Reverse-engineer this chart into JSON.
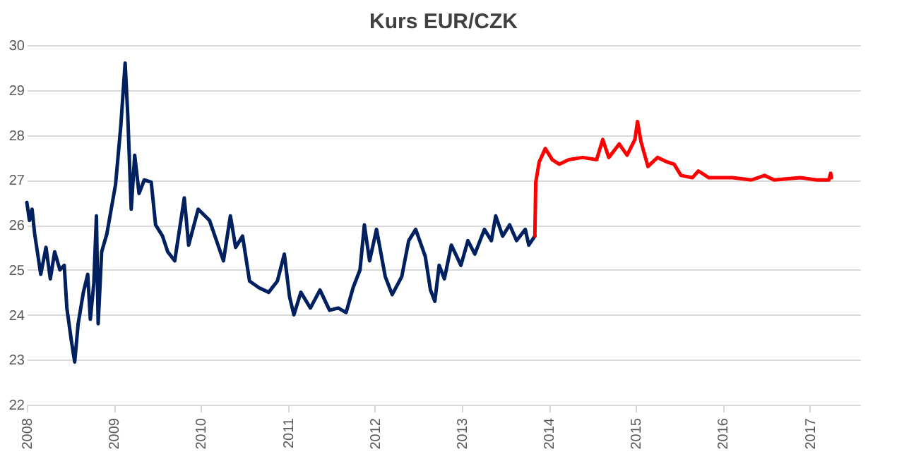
{
  "chart_data": {
    "type": "line",
    "title": "Kurs EUR/CZK",
    "xlim": [
      2008,
      2017.58
    ],
    "xticks": [
      2008,
      2009,
      2010,
      2011,
      2012,
      2013,
      2014,
      2015,
      2016,
      2017
    ],
    "ylim": [
      22,
      30
    ],
    "yticks": [
      22,
      23,
      24,
      25,
      26,
      27,
      28,
      29,
      30
    ],
    "grid": "y",
    "marker": "none",
    "line_style": "solid",
    "series": [
      {
        "color": "#002060",
        "x": [
          2008.0,
          2008.03,
          2008.06,
          2008.09,
          2008.16,
          2008.22,
          2008.27,
          2008.32,
          2008.38,
          2008.43,
          2008.46,
          2008.51,
          2008.55,
          2008.59,
          2008.65,
          2008.7,
          2008.73,
          2008.77,
          2008.8,
          2008.82,
          2008.86,
          2008.92,
          2008.97,
          2009.02,
          2009.08,
          2009.13,
          2009.16,
          2009.2,
          2009.24,
          2009.29,
          2009.35,
          2009.43,
          2009.48,
          2009.56,
          2009.62,
          2009.7,
          2009.81,
          2009.86,
          2009.97,
          2010.1,
          2010.18,
          2010.26,
          2010.34,
          2010.4,
          2010.48,
          2010.56,
          2010.67,
          2010.78,
          2010.88,
          2010.96,
          2011.02,
          2011.07,
          2011.15,
          2011.26,
          2011.37,
          2011.48,
          2011.58,
          2011.67,
          2011.75,
          2011.83,
          2011.88,
          2011.94,
          2012.02,
          2012.12,
          2012.2,
          2012.31,
          2012.39,
          2012.47,
          2012.58,
          2012.64,
          2012.69,
          2012.74,
          2012.8,
          2012.88,
          2012.99,
          2013.07,
          2013.15,
          2013.26,
          2013.34,
          2013.39,
          2013.47,
          2013.55,
          2013.63,
          2013.73,
          2013.77,
          2013.84
        ],
        "values": [
          26.5,
          26.1,
          26.35,
          25.8,
          24.9,
          25.5,
          24.8,
          25.4,
          25.0,
          25.1,
          24.15,
          23.45,
          22.95,
          23.8,
          24.5,
          24.9,
          23.9,
          24.7,
          26.2,
          23.8,
          25.4,
          25.8,
          26.35,
          26.9,
          28.2,
          29.6,
          28.45,
          26.35,
          27.55,
          26.7,
          27.0,
          26.95,
          26.0,
          25.75,
          25.4,
          25.2,
          26.6,
          25.55,
          26.35,
          26.1,
          25.65,
          25.2,
          26.2,
          25.5,
          25.75,
          24.75,
          24.6,
          24.5,
          24.75,
          25.35,
          24.4,
          24.0,
          24.5,
          24.15,
          24.55,
          24.1,
          24.15,
          24.05,
          24.6,
          25.0,
          26.0,
          25.2,
          25.9,
          24.85,
          24.45,
          24.85,
          25.65,
          25.9,
          25.3,
          24.55,
          24.3,
          25.1,
          24.8,
          25.55,
          25.1,
          25.65,
          25.35,
          25.9,
          25.65,
          26.2,
          25.75,
          26.0,
          25.65,
          25.9,
          25.55,
          25.75
        ]
      },
      {
        "color": "#ff0000",
        "x": [
          2013.84,
          2013.85,
          2013.89,
          2013.96,
          2014.04,
          2014.12,
          2014.23,
          2014.39,
          2014.55,
          2014.62,
          2014.69,
          2014.81,
          2014.9,
          2014.99,
          2015.02,
          2015.06,
          2015.14,
          2015.25,
          2015.36,
          2015.44,
          2015.52,
          2015.65,
          2015.72,
          2015.84,
          2016.11,
          2016.33,
          2016.48,
          2016.59,
          2016.89,
          2017.08,
          2017.22,
          2017.24,
          2017.25
        ],
        "values": [
          25.75,
          26.95,
          27.4,
          27.7,
          27.45,
          27.35,
          27.45,
          27.5,
          27.45,
          27.9,
          27.5,
          27.8,
          27.55,
          27.9,
          28.3,
          27.85,
          27.3,
          27.5,
          27.4,
          27.35,
          27.1,
          27.05,
          27.2,
          27.05,
          27.05,
          27.0,
          27.1,
          27.0,
          27.05,
          27.0,
          27.0,
          27.15,
          27.05
        ]
      }
    ]
  }
}
